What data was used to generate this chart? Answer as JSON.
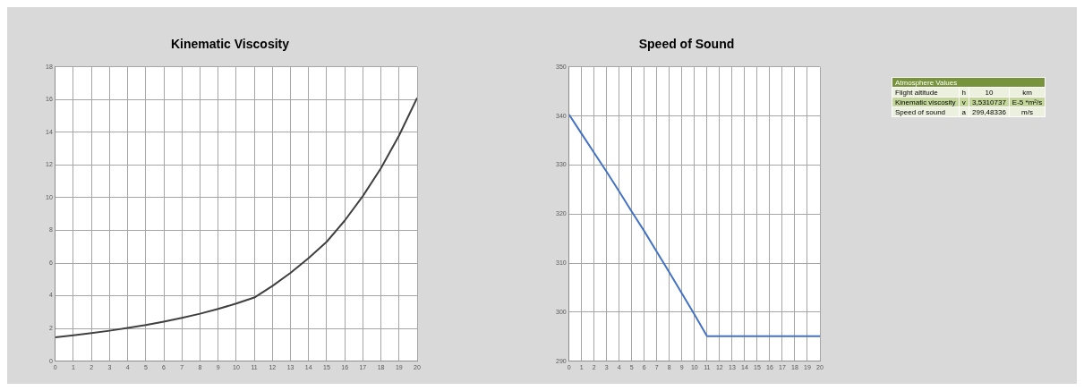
{
  "chart_data": [
    {
      "type": "line",
      "title": "Kinematic Viscosity",
      "x": [
        0,
        1,
        2,
        3,
        4,
        5,
        6,
        7,
        8,
        9,
        10,
        11,
        12,
        13,
        14,
        15,
        16,
        17,
        18,
        19,
        20
      ],
      "series": [
        {
          "color": "#404040",
          "values": [
            1.46,
            1.58,
            1.71,
            1.86,
            2.03,
            2.21,
            2.42,
            2.65,
            2.9,
            3.19,
            3.52,
            3.89,
            4.6,
            5.4,
            6.3,
            7.3,
            8.6,
            10.1,
            11.8,
            13.8,
            16.1
          ]
        }
      ],
      "xlim": [
        0,
        20
      ],
      "xticks": [
        0,
        1,
        2,
        3,
        4,
        5,
        6,
        7,
        8,
        9,
        10,
        11,
        12,
        13,
        14,
        15,
        16,
        17,
        18,
        19,
        20
      ],
      "ylim": [
        0,
        18
      ],
      "yticks": [
        0,
        2,
        4,
        6,
        8,
        10,
        12,
        14,
        16,
        18
      ],
      "grid": true,
      "legend": false,
      "marker": "none",
      "line_style": "solid"
    },
    {
      "type": "line",
      "title": "Speed of Sound",
      "x": [
        0,
        1,
        2,
        3,
        4,
        5,
        6,
        7,
        8,
        9,
        10,
        11,
        12,
        13,
        14,
        15,
        16,
        17,
        18,
        19,
        20
      ],
      "series": [
        {
          "color": "#4472c4",
          "values": [
            340.3,
            336.4,
            332.5,
            328.6,
            324.6,
            320.5,
            316.5,
            312.3,
            308.1,
            303.8,
            299.5,
            295.1,
            295.1,
            295.1,
            295.1,
            295.1,
            295.1,
            295.1,
            295.1,
            295.1,
            295.1
          ]
        }
      ],
      "xlim": [
        0,
        20
      ],
      "xticks": [
        0,
        1,
        2,
        3,
        4,
        5,
        6,
        7,
        8,
        9,
        10,
        11,
        12,
        13,
        14,
        15,
        16,
        17,
        18,
        19,
        20
      ],
      "ylim": [
        290,
        350
      ],
      "yticks": [
        290,
        300,
        310,
        320,
        330,
        340,
        350
      ],
      "grid": true,
      "legend": false,
      "marker": "none",
      "line_style": "solid"
    },
    {
      "type": "other",
      "title": "Atmosphere Values",
      "annotations": [
        "Flight altitude",
        "h",
        "10",
        "km",
        "Kinematic viscosity",
        "v",
        "3,5310737",
        "E-5 *m²/s",
        "Speed of sound",
        "a",
        "299,48336",
        "m/s"
      ]
    }
  ]
}
